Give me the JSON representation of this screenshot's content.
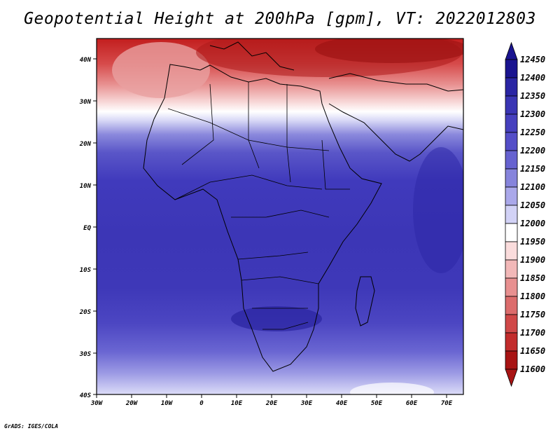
{
  "title": "Geopotential Height at 200hPa [gpm], VT: 2022012803",
  "credit": "GrADS: IGES/COLA",
  "map": {
    "lat_labels": [
      "40N",
      "30N",
      "20N",
      "10N",
      "EQ",
      "10S",
      "20S",
      "30S",
      "40S"
    ],
    "lon_labels": [
      "30W",
      "20W",
      "10W",
      "0",
      "10E",
      "20E",
      "30E",
      "40E",
      "50E",
      "60E",
      "70E"
    ],
    "lat_range": [
      -40,
      45
    ],
    "lon_range": [
      -30,
      75
    ]
  },
  "colorbar": {
    "levels": [
      "12450",
      "12400",
      "12350",
      "12300",
      "12250",
      "12200",
      "12150",
      "12100",
      "12050",
      "12000",
      "11950",
      "11900",
      "11850",
      "11800",
      "11750",
      "11700",
      "11650",
      "11600"
    ],
    "colors": [
      "#1a1490",
      "#2a25a4",
      "#3a35b4",
      "#4640be",
      "#544ec8",
      "#6662d0",
      "#8684dc",
      "#aaa8ea",
      "#d2d2f6",
      "#ffffff",
      "#fadcdc",
      "#f2b8b8",
      "#e89090",
      "#dc6c6c",
      "#d04848",
      "#c22c2c",
      "#a81414"
    ]
  }
}
